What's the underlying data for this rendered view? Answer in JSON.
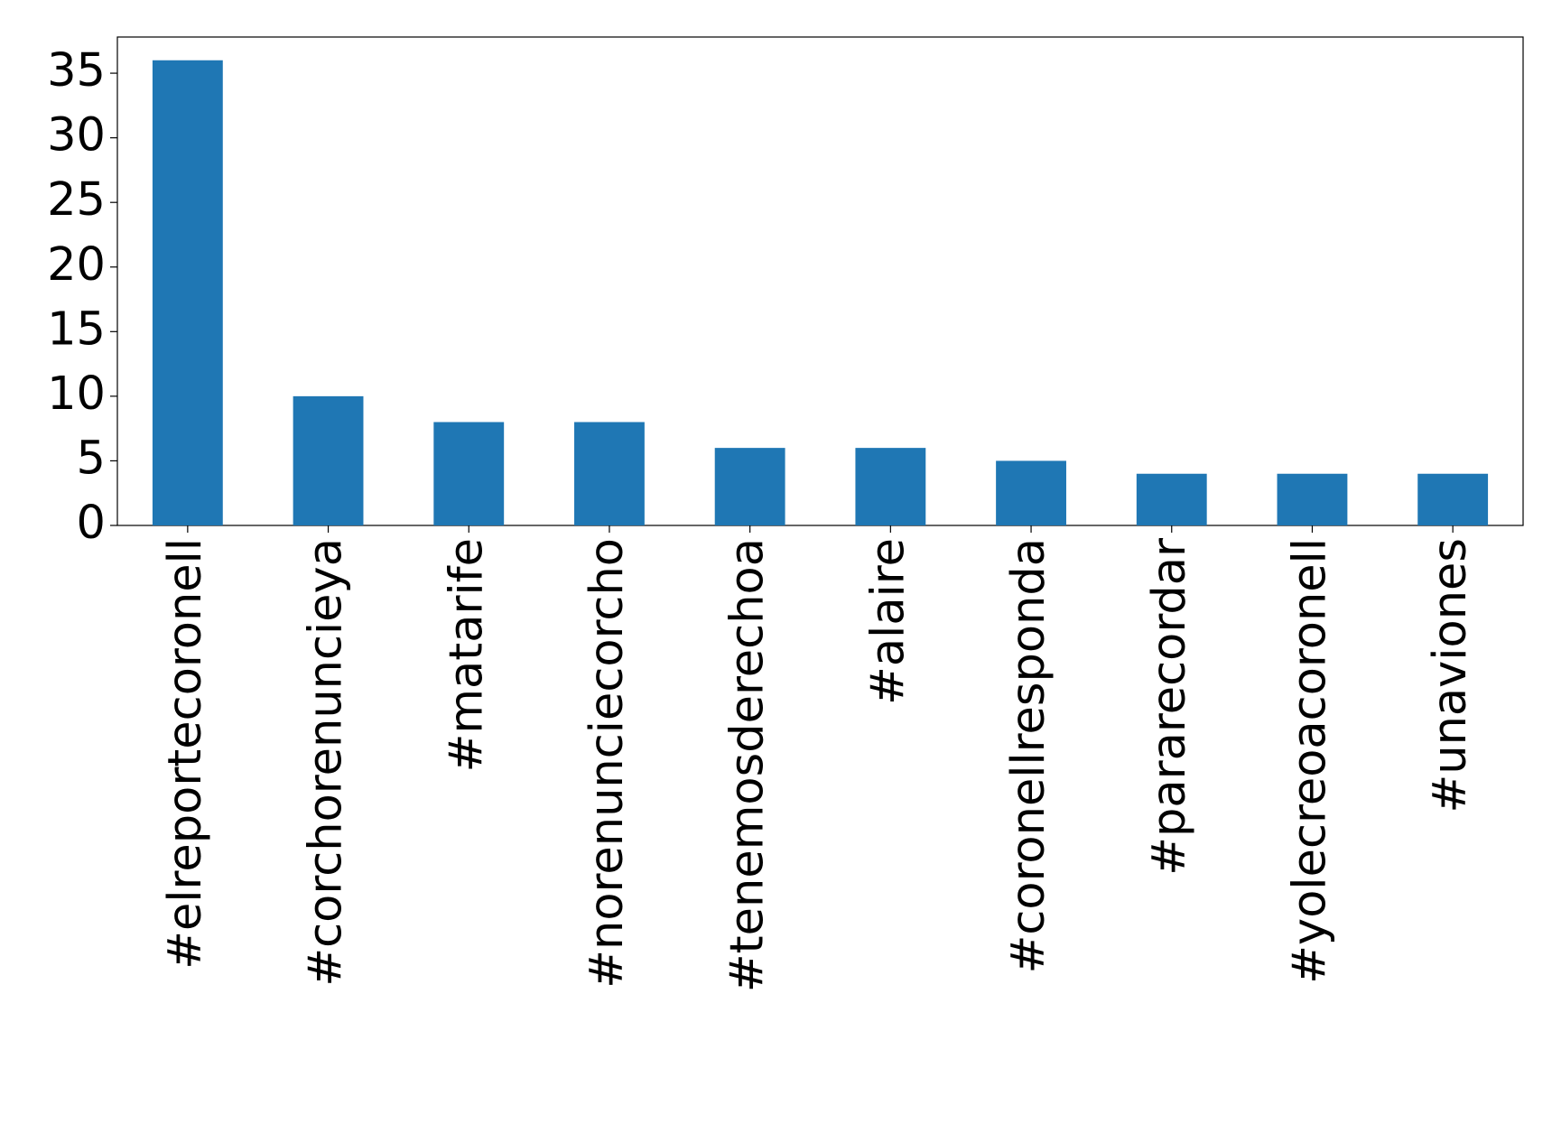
{
  "chart_data": {
    "type": "bar",
    "categories": [
      "#elreportecoronell",
      "#corchorenuncieya",
      "#matarife",
      "#norenunciecorcho",
      "#tenemosderechoa",
      "#alaire",
      "#coronellresponda",
      "#pararecordar",
      "#yolecreoacoronell",
      "#unaviones"
    ],
    "values": [
      36,
      10,
      8,
      8,
      6,
      6,
      5,
      4,
      4,
      4
    ],
    "color": "#1f77b4",
    "ylim": [
      0,
      37.8
    ],
    "yticks": [
      0,
      5,
      10,
      15,
      20,
      25,
      30,
      35
    ],
    "grid": false
  }
}
